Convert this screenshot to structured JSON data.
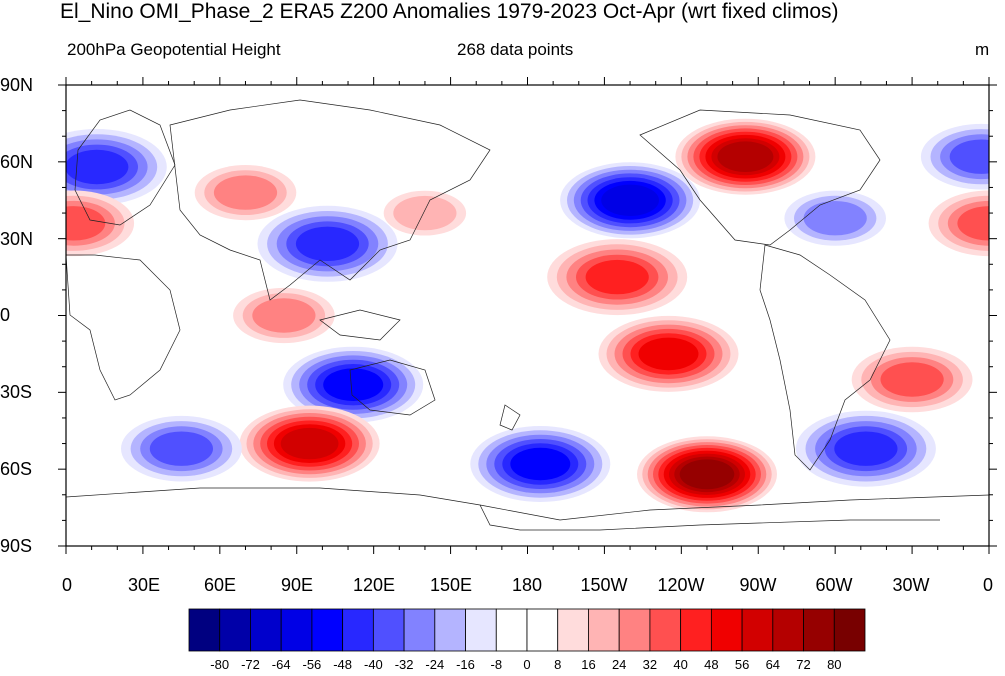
{
  "title": "El_Nino OMI_Phase_2 ERA5 Z200 Anomalies 1979-2023 Oct-Apr (wrt fixed climos)",
  "left_subtitle": "200hPa Geopotential Height",
  "center_subtitle": "268 data points",
  "units": "m",
  "lat_labels": [
    "90N",
    "60N",
    "30N",
    "0",
    "30S",
    "60S",
    "90S"
  ],
  "lon_labels": [
    "0",
    "30E",
    "60E",
    "90E",
    "120E",
    "150E",
    "180",
    "150W",
    "120W",
    "90W",
    "60W",
    "30W",
    "0"
  ],
  "colorbar": {
    "labels": [
      "-80",
      "-72",
      "-64",
      "-56",
      "-48",
      "-40",
      "-32",
      "-24",
      "-16",
      "-8",
      "0",
      "8",
      "16",
      "24",
      "32",
      "40",
      "48",
      "56",
      "64",
      "72",
      "80"
    ],
    "colors": [
      "#000080",
      "#0000a8",
      "#0000cc",
      "#0000e6",
      "#0000ff",
      "#2828ff",
      "#5050ff",
      "#8282ff",
      "#b4b4ff",
      "#e6e6ff",
      "#ffffff",
      "#ffffff",
      "#ffdcdc",
      "#ffb4b4",
      "#ff8282",
      "#ff5050",
      "#ff2020",
      "#f00000",
      "#d20000",
      "#b40000",
      "#960000",
      "#780000"
    ]
  },
  "anomaly_centers": [
    {
      "lon": 12,
      "lat": 58,
      "value": -40
    },
    {
      "lon": 70,
      "lat": 48,
      "value": 24
    },
    {
      "lon": 102,
      "lat": 28,
      "value": -40
    },
    {
      "lon": 220,
      "lat": 45,
      "value": -56
    },
    {
      "lon": 265,
      "lat": 62,
      "value": 64
    },
    {
      "lon": 300,
      "lat": 38,
      "value": -24
    },
    {
      "lon": 3,
      "lat": 36,
      "value": 32
    },
    {
      "lon": 360,
      "lat": 36,
      "value": 32
    },
    {
      "lon": 357,
      "lat": 62,
      "value": -32
    },
    {
      "lon": 140,
      "lat": 40,
      "value": 16
    },
    {
      "lon": 215,
      "lat": 15,
      "value": 40
    },
    {
      "lon": 235,
      "lat": -15,
      "value": 48
    },
    {
      "lon": 85,
      "lat": 0,
      "value": 24
    },
    {
      "lon": 330,
      "lat": -25,
      "value": 32
    },
    {
      "lon": 112,
      "lat": -27,
      "value": -48
    },
    {
      "lon": 95,
      "lat": -50,
      "value": 56
    },
    {
      "lon": 45,
      "lat": -52,
      "value": -32
    },
    {
      "lon": 185,
      "lat": -58,
      "value": -48
    },
    {
      "lon": 250,
      "lat": -62,
      "value": 72
    },
    {
      "lon": 312,
      "lat": -52,
      "value": -40
    }
  ]
}
